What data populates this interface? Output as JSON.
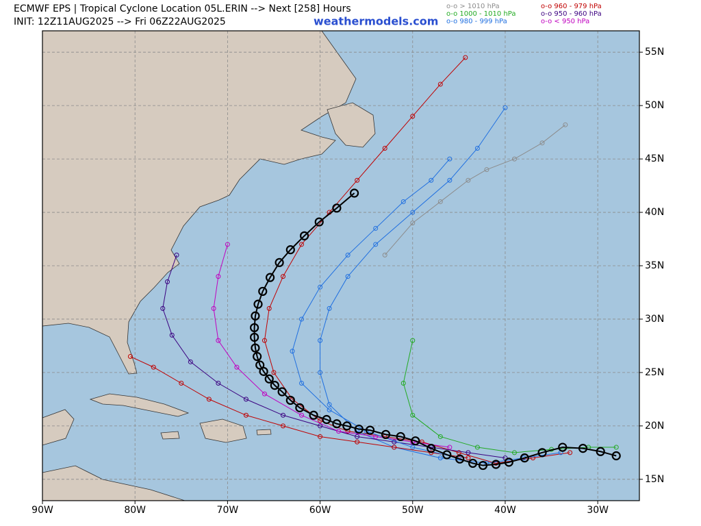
{
  "chart_data": {
    "type": "line",
    "title": "ECMWF EPS | Tropical Cyclone Location 05L.ERIN --> Next [258] Hours",
    "subtitle": "INIT: 12Z11AUG2025 --> Fri 06Z22AUG2025",
    "source": "weathermodels.com",
    "legend": [
      {
        "label": "o-o > 1010 hPa",
        "color": "#8c8c8c"
      },
      {
        "label": "o-o 1000 - 1010 hPa",
        "color": "#22aa22"
      },
      {
        "label": "o-o 980 - 999 hPa",
        "color": "#1f6fe0"
      },
      {
        "label": "o-o 960 - 979 hPa",
        "color": "#c00000"
      },
      {
        "label": "o-o 950 - 960 hPa",
        "color": "#3a0080"
      },
      {
        "label": "o-o < 950 hPa",
        "color": "#c000c0"
      }
    ],
    "xlim": [
      -90,
      -25.5
    ],
    "ylim": [
      13,
      57
    ],
    "xticks": [
      {
        "value": -90,
        "label": "90W"
      },
      {
        "value": -80,
        "label": "80W"
      },
      {
        "value": -70,
        "label": "70W"
      },
      {
        "value": -60,
        "label": "60W"
      },
      {
        "value": -50,
        "label": "50W"
      },
      {
        "value": -40,
        "label": "40W"
      },
      {
        "value": -30,
        "label": "30W"
      }
    ],
    "yticks": [
      {
        "value": 15,
        "label": "15N"
      },
      {
        "value": 20,
        "label": "20N"
      },
      {
        "value": 25,
        "label": "25N"
      },
      {
        "value": 30,
        "label": "30N"
      },
      {
        "value": 35,
        "label": "35N"
      },
      {
        "value": 40,
        "label": "40N"
      },
      {
        "value": 45,
        "label": "45N"
      },
      {
        "value": 50,
        "label": "50N"
      },
      {
        "value": 55,
        "label": "55N"
      }
    ],
    "grid": true,
    "series": [
      {
        "color": "#c00000",
        "x": [
          -44.3,
          -47,
          -50,
          -53,
          -56,
          -59,
          -62,
          -64,
          -65.5,
          -66,
          -65,
          -63,
          -60,
          -57,
          -53,
          -49,
          -45,
          -41,
          -37,
          -33
        ],
        "y": [
          54.5,
          52,
          49,
          46,
          43,
          40,
          37,
          34,
          31,
          28,
          25,
          22.5,
          20.5,
          19.5,
          19,
          18.5,
          17.5,
          16.5,
          17,
          17.5
        ]
      },
      {
        "color": "#1f6fe0",
        "x": [
          -40,
          -43,
          -46,
          -50,
          -54,
          -57,
          -59,
          -60,
          -60,
          -59,
          -56,
          -52,
          -47,
          -42,
          -38,
          -34
        ],
        "y": [
          49.8,
          46,
          43,
          40,
          37,
          34,
          31,
          28,
          25,
          22,
          19.5,
          18,
          17,
          16.5,
          17,
          17.5
        ]
      },
      {
        "color": "#3a0080",
        "x": [
          -75.5,
          -76.5,
          -77,
          -76,
          -74,
          -71,
          -68,
          -64,
          -60,
          -56,
          -52,
          -48,
          -44,
          -40
        ],
        "y": [
          36,
          33.5,
          31,
          28.5,
          26,
          24,
          22.5,
          21,
          20,
          19,
          18.5,
          18,
          17.5,
          17
        ]
      },
      {
        "color": "#c00000",
        "x": [
          -80.5,
          -78,
          -75,
          -72,
          -68,
          -64,
          -60,
          -56,
          -52,
          -48,
          -44
        ],
        "y": [
          26.5,
          25.5,
          24,
          22.5,
          21,
          20,
          19,
          18.5,
          18,
          17.5,
          17
        ]
      },
      {
        "color": "#22aa22",
        "x": [
          -50,
          -51,
          -50,
          -47,
          -43,
          -39,
          -35,
          -31,
          -28
        ],
        "y": [
          28,
          24,
          21,
          19,
          18,
          17.5,
          17.8,
          18,
          18
        ]
      },
      {
        "color": "#c000c0",
        "x": [
          -70,
          -71,
          -71.5,
          -71,
          -69,
          -66,
          -62,
          -58,
          -54,
          -50,
          -46
        ],
        "y": [
          37,
          34,
          31,
          28,
          25.5,
          23,
          21,
          19.5,
          19,
          18.5,
          18
        ]
      },
      {
        "color": "#8c8c8c",
        "x": [
          -33.5,
          -36,
          -39,
          -42,
          -44,
          -47,
          -50,
          -53
        ],
        "y": [
          48.2,
          46.5,
          45,
          44,
          43,
          41,
          39,
          36
        ]
      },
      {
        "color": "#1f6fe0",
        "x": [
          -46,
          -48,
          -51,
          -54,
          -57,
          -60,
          -62,
          -63,
          -62,
          -59,
          -55,
          -50,
          -45
        ],
        "y": [
          45,
          43,
          41,
          38.5,
          36,
          33,
          30,
          27,
          24,
          21.5,
          19.5,
          18,
          17
        ]
      },
      {
        "color": "#000000",
        "x": [
          -56.3,
          -58.2,
          -60.1,
          -61.7,
          -63.2,
          -64.4,
          -65.4,
          -66.2,
          -66.7,
          -67.0,
          -67.1,
          -67.1,
          -67.0,
          -66.8,
          -66.5,
          -66.1,
          -65.5,
          -64.9,
          -64.1,
          -63.2,
          -62.2,
          -60.7,
          -59.3,
          -58.2,
          -57.1,
          -55.8,
          -54.6,
          -52.9,
          -51.3,
          -49.7,
          -48.0,
          -46.3,
          -44.9,
          -43.5,
          -42.4,
          -41.0,
          -39.6,
          -37.9,
          -36.0,
          -33.8,
          -31.6,
          -29.7,
          -28.0
        ],
        "y": [
          41.8,
          40.4,
          39.1,
          37.8,
          36.5,
          35.3,
          33.9,
          32.6,
          31.4,
          30.3,
          29.2,
          28.3,
          27.3,
          26.5,
          25.7,
          25.1,
          24.4,
          23.8,
          23.2,
          22.4,
          21.7,
          21.0,
          20.6,
          20.2,
          20.0,
          19.7,
          19.6,
          19.2,
          19.0,
          18.6,
          17.9,
          17.3,
          16.9,
          16.5,
          16.3,
          16.4,
          16.6,
          17.0,
          17.5,
          18.0,
          17.9,
          17.6,
          17.2
        ]
      }
    ]
  }
}
